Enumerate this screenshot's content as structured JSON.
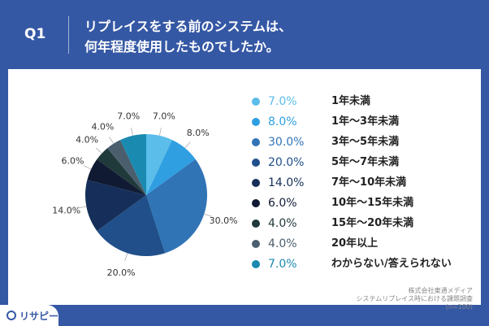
{
  "header": {
    "q_label": "Q1",
    "title_line1": "リプレイスをする前のシステムは、",
    "title_line2": "何年程度使用したものでしたか。"
  },
  "chart_data": {
    "type": "pie",
    "categories": [
      "1年未満",
      "1年〜3年未満",
      "3年〜5年未満",
      "5年〜7年未満",
      "7年〜10年未満",
      "10年〜15年未満",
      "15年〜20年未満",
      "20年以上",
      "わからない/答えられない"
    ],
    "values": [
      7.0,
      8.0,
      30.0,
      20.0,
      14.0,
      6.0,
      4.0,
      4.0,
      7.0
    ],
    "value_labels": [
      "7.0%",
      "8.0%",
      "30.0%",
      "20.0%",
      "14.0%",
      "6.0%",
      "4.0%",
      "4.0%",
      "7.0%"
    ],
    "colors": [
      "#5bbde9",
      "#2f9fe2",
      "#3074b6",
      "#204f8a",
      "#152f5a",
      "#101a33",
      "#20393a",
      "#4a5e6e",
      "#1a8ab0"
    ],
    "legend_position": "right"
  },
  "source": {
    "line1": "株式会社東通メディア",
    "line2": "システムリプレイス時における課題調査",
    "line3": "(n=100)"
  },
  "brand": {
    "name": "リサピー"
  }
}
